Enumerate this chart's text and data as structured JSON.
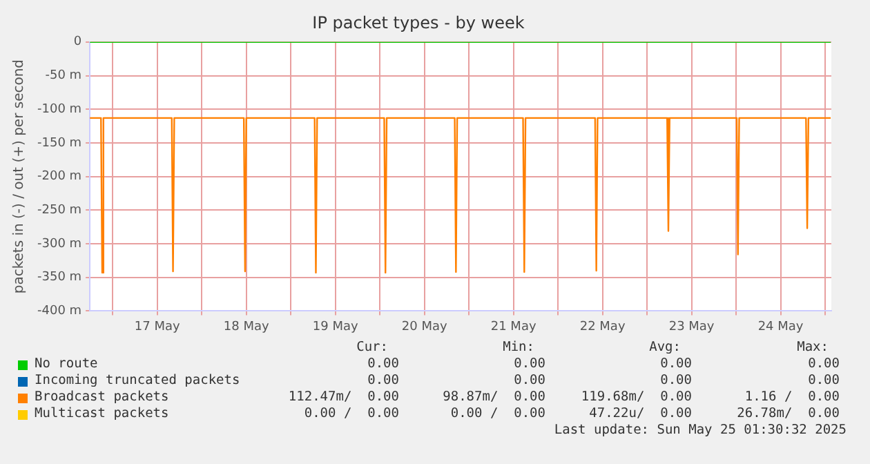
{
  "chart_data": {
    "type": "line",
    "title": "IP packet types - by week",
    "ylabel": "packets in (-) / out (+) per second",
    "xlim": [
      "2025-05-16T17:50",
      "2025-05-25T01:40"
    ],
    "xticks": [
      {
        "value": "2025-05-17T00:00",
        "label": null
      },
      {
        "value": "2025-05-17T12:00",
        "label": "17 May"
      },
      {
        "value": "2025-05-18T00:00",
        "label": null
      },
      {
        "value": "2025-05-18T12:00",
        "label": "18 May"
      },
      {
        "value": "2025-05-19T00:00",
        "label": null
      },
      {
        "value": "2025-05-19T12:00",
        "label": "19 May"
      },
      {
        "value": "2025-05-20T00:00",
        "label": null
      },
      {
        "value": "2025-05-20T12:00",
        "label": "20 May"
      },
      {
        "value": "2025-05-21T00:00",
        "label": null
      },
      {
        "value": "2025-05-21T12:00",
        "label": "21 May"
      },
      {
        "value": "2025-05-22T00:00",
        "label": null
      },
      {
        "value": "2025-05-22T12:00",
        "label": "22 May"
      },
      {
        "value": "2025-05-23T00:00",
        "label": null
      },
      {
        "value": "2025-05-23T12:00",
        "label": "23 May"
      },
      {
        "value": "2025-05-24T00:00",
        "label": null
      },
      {
        "value": "2025-05-24T12:00",
        "label": "24 May"
      },
      {
        "value": "2025-05-25T00:00",
        "label": null
      }
    ],
    "ylim": [
      -400,
      0
    ],
    "yticks": [
      {
        "value": -400,
        "label": "-400 m"
      },
      {
        "value": -350,
        "label": "-350 m"
      },
      {
        "value": -300,
        "label": "-300 m"
      },
      {
        "value": -250,
        "label": "-250 m"
      },
      {
        "value": -200,
        "label": "-200 m"
      },
      {
        "value": -150,
        "label": "-150 m"
      },
      {
        "value": -100,
        "label": "-100 m"
      },
      {
        "value": -50,
        "label": "-50 m"
      },
      0
    ],
    "grid": true,
    "legend": "bottom",
    "marker": "none",
    "line_style": "solid",
    "series": [
      {
        "name": "No route",
        "color": "#00cc00",
        "x": [
          "2025-05-16T17:50",
          "2025-05-25T01:30"
        ],
        "values": [
          0,
          0
        ]
      },
      {
        "name": "Incoming truncated packets",
        "color": "#0066b3",
        "values": [
          null,
          null
        ]
      },
      {
        "name": "Broadcast packets",
        "color": "#ff8000",
        "x": [
          "2025-05-16T17:50",
          "2025-05-16T20:50",
          "2025-05-16T21:10",
          "2025-05-16T21:30",
          "2025-05-17T15:55",
          "2025-05-17T16:15",
          "2025-05-17T16:35",
          "2025-05-18T11:20",
          "2025-05-18T11:40",
          "2025-05-18T12:00",
          "2025-05-19T06:25",
          "2025-05-19T06:45",
          "2025-05-19T07:05",
          "2025-05-20T01:10",
          "2025-05-20T01:30",
          "2025-05-20T01:50",
          "2025-05-20T20:10",
          "2025-05-20T20:30",
          "2025-05-20T20:50",
          "2025-05-21T14:35",
          "2025-05-21T14:55",
          "2025-05-21T15:15",
          "2025-05-22T10:00",
          "2025-05-22T10:20",
          "2025-05-22T10:40",
          "2025-05-23T05:25",
          "2025-05-23T05:45",
          "2025-05-23T06:05",
          "2025-05-24T00:10",
          "2025-05-24T00:30",
          "2025-05-24T00:50",
          "2025-05-24T18:50",
          "2025-05-24T19:10",
          "2025-05-24T19:30",
          "2025-05-25T01:30"
        ],
        "values": [
          -113,
          -113,
          -343,
          -113,
          -113,
          -341,
          -113,
          -113,
          -341,
          -113,
          -113,
          -343,
          -113,
          -113,
          -343,
          -113,
          -113,
          -342,
          -113,
          -113,
          -342,
          -113,
          -113,
          -340,
          -113,
          -113,
          -281,
          -113,
          -113,
          -316,
          -113,
          -113,
          -277,
          -113,
          -113
        ]
      },
      {
        "name": "Multicast packets",
        "color": "#ffcc00",
        "values": [
          null,
          null
        ]
      }
    ],
    "annotations": [
      "Cur:",
      "Min:",
      "Avg:",
      "Max:",
      "0.00",
      "0.00",
      "0.00",
      "0.00",
      "0.00",
      "0.00",
      "0.00",
      "0.00",
      "112.47m/  0.00",
      "98.87m/  0.00",
      "119.68m/  0.00",
      "1.16 /  0.00",
      "0.00 /  0.00",
      "0.00 /  0.00",
      "47.22u/  0.00",
      "26.78m/  0.00",
      "Last update: Sun May 25 01:30:32 2025"
    ]
  }
}
